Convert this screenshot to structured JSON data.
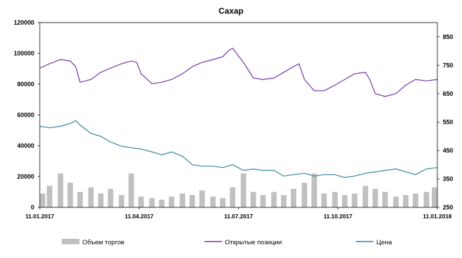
{
  "chart_data": {
    "type": "bar+line",
    "title": "Сахар",
    "left_axis": {
      "ylim": [
        0,
        120000
      ],
      "ticks": [
        "0",
        "20000",
        "40000",
        "60000",
        "80000",
        "100000",
        "120000"
      ]
    },
    "right_axis": {
      "ylim": [
        250,
        900
      ],
      "ticks": [
        "250",
        "350",
        "450",
        "550",
        "650",
        "750",
        "850"
      ]
    },
    "x_axis": {
      "ticks": [
        "11.01.2017",
        "11.04.2017",
        "11.07.2017",
        "11.10.2017",
        "11.01.2018"
      ]
    },
    "legend_position": "bottom",
    "series": [
      {
        "name": "Объем торгов",
        "type": "bar",
        "axis": "left",
        "color": "#c0c0c0",
        "x": [
          "2017-01-11",
          "2017-01-20",
          "2017-01-30",
          "2017-02-08",
          "2017-02-17",
          "2017-02-27",
          "2017-03-08",
          "2017-03-17",
          "2017-03-27",
          "2017-04-05",
          "2017-04-14",
          "2017-04-24",
          "2017-05-03",
          "2017-05-12",
          "2017-05-22",
          "2017-05-31",
          "2017-06-09",
          "2017-06-19",
          "2017-06-28",
          "2017-07-07",
          "2017-07-17",
          "2017-07-26",
          "2017-08-04",
          "2017-08-14",
          "2017-08-23",
          "2017-09-01",
          "2017-09-11",
          "2017-09-20",
          "2017-09-29",
          "2017-10-09",
          "2017-10-18",
          "2017-10-27",
          "2017-11-06",
          "2017-11-15",
          "2017-11-24",
          "2017-12-04",
          "2017-12-13",
          "2017-12-22",
          "2018-01-01",
          "2018-01-11"
        ],
        "values": [
          9000,
          14000,
          22000,
          16000,
          10000,
          13000,
          9000,
          12000,
          8000,
          22000,
          7000,
          6000,
          5000,
          7000,
          9000,
          8000,
          11000,
          7000,
          6000,
          13000,
          22000,
          10000,
          8000,
          10000,
          8000,
          12000,
          16000,
          22000,
          9000,
          10000,
          8000,
          9000,
          14000,
          12000,
          10000,
          7000,
          8000,
          9000,
          10000,
          13000
        ]
      },
      {
        "name": "Открытые позиции",
        "type": "line",
        "axis": "right",
        "color": "#7030a0",
        "x": [
          "2017-01-11",
          "2017-01-20",
          "2017-01-30",
          "2017-02-08",
          "2017-02-13",
          "2017-02-17",
          "2017-02-27",
          "2017-03-08",
          "2017-03-17",
          "2017-03-27",
          "2017-04-05",
          "2017-04-10",
          "2017-04-14",
          "2017-04-24",
          "2017-05-03",
          "2017-05-12",
          "2017-05-22",
          "2017-05-31",
          "2017-06-09",
          "2017-06-19",
          "2017-06-28",
          "2017-07-03",
          "2017-07-07",
          "2017-07-17",
          "2017-07-26",
          "2017-08-04",
          "2017-08-14",
          "2017-08-23",
          "2017-09-01",
          "2017-09-06",
          "2017-09-11",
          "2017-09-20",
          "2017-09-29",
          "2017-10-09",
          "2017-10-18",
          "2017-10-27",
          "2017-11-06",
          "2017-11-10",
          "2017-11-15",
          "2017-11-24",
          "2017-12-04",
          "2017-12-13",
          "2017-12-22",
          "2018-01-01",
          "2018-01-11"
        ],
        "values": [
          740,
          755,
          770,
          765,
          745,
          690,
          700,
          725,
          740,
          755,
          765,
          760,
          720,
          685,
          690,
          700,
          720,
          745,
          760,
          770,
          780,
          800,
          810,
          760,
          705,
          700,
          705,
          725,
          745,
          755,
          700,
          660,
          660,
          680,
          700,
          720,
          725,
          700,
          650,
          640,
          650,
          680,
          700,
          695,
          700
        ]
      },
      {
        "name": "Цена",
        "type": "line",
        "axis": "right",
        "color": "#31849b",
        "x": [
          "2017-01-11",
          "2017-01-20",
          "2017-01-30",
          "2017-02-08",
          "2017-02-13",
          "2017-02-17",
          "2017-02-27",
          "2017-03-08",
          "2017-03-17",
          "2017-03-27",
          "2017-04-05",
          "2017-04-14",
          "2017-04-24",
          "2017-05-03",
          "2017-05-12",
          "2017-05-22",
          "2017-05-31",
          "2017-06-09",
          "2017-06-19",
          "2017-06-28",
          "2017-07-07",
          "2017-07-17",
          "2017-07-26",
          "2017-08-04",
          "2017-08-14",
          "2017-08-23",
          "2017-09-01",
          "2017-09-11",
          "2017-09-20",
          "2017-09-29",
          "2017-10-09",
          "2017-10-18",
          "2017-10-27",
          "2017-11-06",
          "2017-11-15",
          "2017-11-24",
          "2017-12-04",
          "2017-12-13",
          "2017-12-22",
          "2018-01-01",
          "2018-01-11"
        ],
        "values": [
          535,
          530,
          535,
          545,
          555,
          540,
          510,
          500,
          480,
          465,
          460,
          455,
          445,
          435,
          445,
          430,
          400,
          395,
          395,
          390,
          400,
          380,
          385,
          380,
          380,
          360,
          365,
          370,
          360,
          365,
          365,
          355,
          360,
          370,
          375,
          380,
          385,
          375,
          365,
          385,
          390
        ]
      }
    ]
  }
}
